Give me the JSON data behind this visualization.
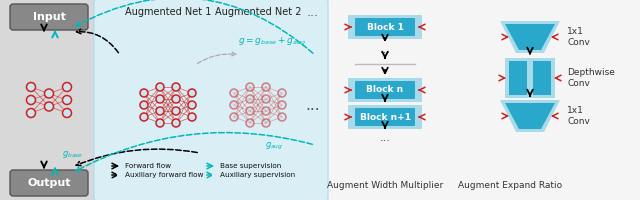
{
  "fig_width": 6.4,
  "fig_height": 2.0,
  "dpi": 100,
  "bg_color": "#f5f5f5",
  "left_panel_bg": "#d8d8d8",
  "right_panel_bg": "#daeef5",
  "block_color": "#29a8cc",
  "block_light": "#a8daea",
  "node_fill": "#cce4f0",
  "node_edge_red": "#cc2222",
  "node_edge_gray": "#bbbbbb",
  "arrow_black": "#111111",
  "arrow_teal": "#00b8b8",
  "arrow_red": "#cc2222",
  "gray_color": "#999999",
  "aug_net1_label": "Augmented Net 1",
  "aug_net2_label": "Augmented Net 2",
  "block1_label": "Block 1",
  "blockn_label": "Block n",
  "blocknp1_label": "Block n+1",
  "aug_width_label": "Augment Width Multiplier",
  "aug_expand_label": "Augment Expand Ratio",
  "conv1x1_label": "1x1\nConv",
  "depthwise_label": "Depthwise\nConv",
  "conv1x1b_label": "1x1\nConv"
}
